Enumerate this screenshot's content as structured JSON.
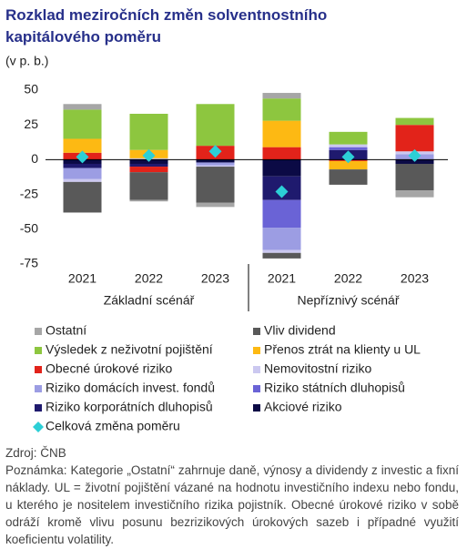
{
  "chart_data": {
    "type": "stacked-bar",
    "title": "Rozklad meziročních změn solventnostního kapitálového poměru",
    "subtitle": "(v p. b.)",
    "categories": [
      "2021",
      "2022",
      "2023",
      "2021",
      "2022",
      "2023"
    ],
    "group_labels": [
      "Základní scénář",
      "Nepříznivý scénář"
    ],
    "ylim": [
      -75,
      50
    ],
    "yticks": [
      -75,
      -50,
      -25,
      0,
      25,
      50
    ],
    "series": [
      {
        "name": "Ostatní",
        "color": "#a6a6a6",
        "values": [
          4,
          -1,
          -3,
          4,
          0,
          -5
        ]
      },
      {
        "name": "Vliv dividend",
        "color": "#595959",
        "values": [
          -22,
          -20,
          -26,
          -4,
          -11,
          -19
        ]
      },
      {
        "name": "Výsledek z neživotní pojištění",
        "color": "#8dc63f",
        "values": [
          21,
          26,
          30,
          16,
          9,
          5
        ]
      },
      {
        "name": "Přenos ztrát na klienty u UL",
        "color": "#fdb913",
        "values": [
          10,
          6,
          0,
          19,
          -6,
          0
        ]
      },
      {
        "name": "Obecné úrokové riziko",
        "color": "#e2231a",
        "values": [
          5,
          -4,
          10,
          9,
          -1,
          19
        ]
      },
      {
        "name": "Nemovitostní riziko",
        "color": "#cbc8f0",
        "values": [
          -2,
          1,
          -1,
          -2,
          2,
          2
        ]
      },
      {
        "name": "Riziko domácích invest. fondů",
        "color": "#9c9de3",
        "values": [
          -8,
          0,
          -2,
          -16,
          0,
          4
        ]
      },
      {
        "name": "Riziko státních dluhopisů",
        "color": "#6a63d6",
        "values": [
          0,
          0,
          0,
          -20,
          2,
          0
        ]
      },
      {
        "name": "Riziko korporátních dluhopisů",
        "color": "#1f1a6e",
        "values": [
          -3,
          -2,
          0,
          -17,
          7,
          0
        ]
      },
      {
        "name": "Akciové riziko",
        "color": "#0b0a45",
        "values": [
          -3,
          -3,
          -2,
          -12,
          0,
          -3
        ]
      }
    ],
    "total": {
      "name": "Celková změna poměru",
      "color": "#2ccfd6",
      "values": [
        2,
        3,
        6,
        -23,
        2,
        3
      ]
    },
    "source": "Zdroj: ČNB",
    "note": "Poznámka: Kategorie „Ostatní“ zahrnuje daně, výnosy a dividendy z investic a fixní náklady. UL = životní pojištění vázané na hodnotu investičního indexu nebo fondu, u kterého je nositelem investičního rizika pojistník. Obecné úrokové riziko v sobě odráží kromě vlivu posunu bezrizikových úrokových sazeb i případné využití koeficientu volatility."
  }
}
